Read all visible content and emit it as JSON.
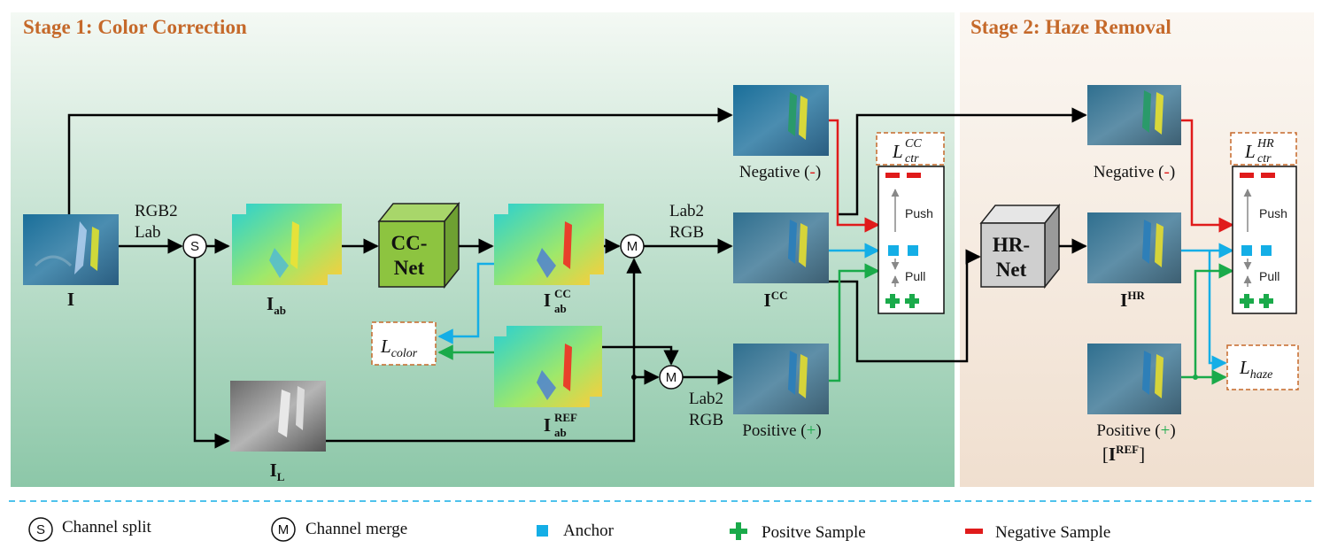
{
  "stage1": {
    "title": "Stage 1: Color Correction"
  },
  "stage2": {
    "title": "Stage 2: Haze Removal"
  },
  "labels": {
    "rgb2lab_1": "RGB2",
    "rgb2lab_2": "Lab",
    "lab2rgb_top_1": "Lab2",
    "lab2rgb_top_2": "RGB",
    "lab2rgb_bot_1": "Lab2",
    "lab2rgb_bot_2": "RGB",
    "split_symbol": "S",
    "merge_symbol": "M"
  },
  "images": {
    "input": {
      "base": "I"
    },
    "ab": {
      "base": "I",
      "sub": "ab"
    },
    "l": {
      "base": "I",
      "sub": "L"
    },
    "ab_cc": {
      "base": "I",
      "sub": "ab",
      "sup": "CC"
    },
    "ab_ref": {
      "base": "I",
      "sub": "ab",
      "sup": "REF"
    },
    "cc": {
      "base": "I",
      "sup": "CC"
    },
    "hr": {
      "base": "I",
      "sup": "HR"
    }
  },
  "networks": {
    "cc_net_1": "CC-",
    "cc_net_2": "Net",
    "hr_net_1": "HR-",
    "hr_net_2": "Net"
  },
  "samples": {
    "negative_1": {
      "text": "Negative (",
      "sign": "-",
      "close": ")"
    },
    "positive_1": {
      "text": "Positive (",
      "sign": "+",
      "close": ")"
    },
    "negative_2": {
      "text": "Negative (",
      "sign": "-",
      "close": ")"
    },
    "positive_2": {
      "text": "Positive (",
      "sign": "+",
      "close": ")"
    },
    "positive_2_ref": {
      "open": "[",
      "base": "I",
      "sup": "REF",
      "close": "]"
    }
  },
  "contrastive": {
    "push": "Push",
    "pull": "Pull"
  },
  "losses": {
    "ctr_cc": {
      "base": "L",
      "sub": "ctr",
      "sup": "CC"
    },
    "ctr_hr": {
      "base": "L",
      "sub": "ctr",
      "sup": "HR"
    },
    "color": {
      "base": "L",
      "sub": "color"
    },
    "haze": {
      "base": "L",
      "sub": "haze"
    }
  },
  "legend": {
    "split": "Channel split",
    "merge": "Channel merge",
    "anchor": "Anchor",
    "positive": "Positve Sample",
    "negative": "Negative Sample"
  },
  "colors": {
    "orange": "#c5692a",
    "anchor": "#14aee6",
    "positive": "#1aaa4a",
    "negative": "#e01b1b",
    "cc_net": "#8dc440",
    "hr_net": "#cfcfcf"
  }
}
